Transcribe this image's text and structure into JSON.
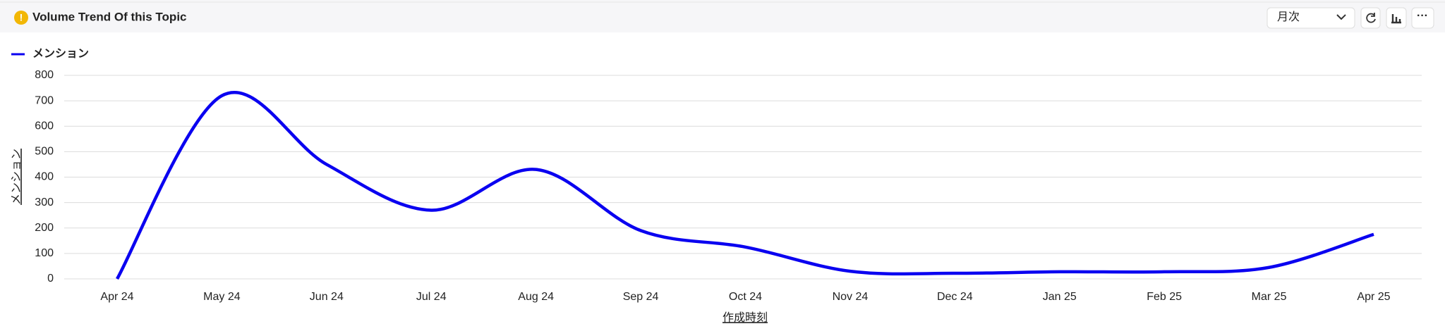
{
  "chart_data": {
    "type": "line",
    "title": "Volume Trend Of this Topic",
    "interval": "月次",
    "categories": [
      "Apr 24",
      "May 24",
      "Jun 24",
      "Jul 24",
      "Aug 24",
      "Sep 24",
      "Oct 24",
      "Nov 24",
      "Dec 24",
      "Jan 25",
      "Feb 25",
      "Mar 25",
      "Apr 25"
    ],
    "series": [
      {
        "name": "メンション",
        "color": "#0a00f0",
        "values": [
          0,
          720,
          450,
          270,
          430,
          190,
          125,
          30,
          22,
          28,
          28,
          45,
          175
        ]
      }
    ],
    "ylim": [
      0,
      800
    ],
    "yticks": [
      0,
      100,
      200,
      300,
      400,
      500,
      600,
      700,
      800
    ],
    "y_label": "メンション",
    "x_label": "作成時刻",
    "grid": true,
    "legend": "top-left"
  }
}
